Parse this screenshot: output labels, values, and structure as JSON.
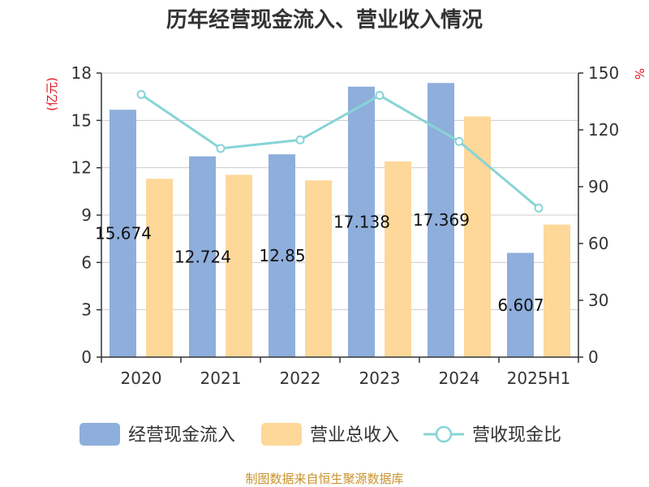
{
  "chart_data": {
    "type": "bar",
    "title": "历年经营现金流入、营业收入情况",
    "categories": [
      "2020",
      "2021",
      "2022",
      "2023",
      "2024",
      "2025H1"
    ],
    "y_left": {
      "unit": "(亿元)",
      "ylim": [
        0,
        18
      ],
      "ticks": [
        0,
        3,
        6,
        9,
        12,
        15,
        18
      ]
    },
    "y_right": {
      "unit": "%",
      "ylim": [
        0,
        150
      ],
      "ticks": [
        0,
        30,
        60,
        90,
        120,
        150
      ]
    },
    "series": [
      {
        "name": "经营现金流入",
        "type": "bar",
        "axis": "left",
        "values": [
          15.674,
          12.724,
          12.85,
          17.138,
          17.369,
          6.607
        ],
        "labels": [
          "15.674",
          "12.724",
          "12.85",
          "17.138",
          "17.369",
          "6.607"
        ]
      },
      {
        "name": "营业总收入",
        "type": "bar",
        "axis": "left",
        "values": [
          11.3,
          11.55,
          11.2,
          12.4,
          15.25,
          8.4
        ]
      },
      {
        "name": "营收现金比",
        "type": "line",
        "axis": "right",
        "values": [
          138.7,
          110.2,
          114.7,
          138.2,
          113.9,
          78.7
        ]
      }
    ],
    "grid": true,
    "legend": "bottom"
  },
  "colors": {
    "bar1": "#8eaedc",
    "bar2": "#fdd899",
    "line": "#87d4d6",
    "unit": "#e0141e",
    "source": "#c8922a"
  },
  "source": "制图数据来自恒生聚源数据库"
}
